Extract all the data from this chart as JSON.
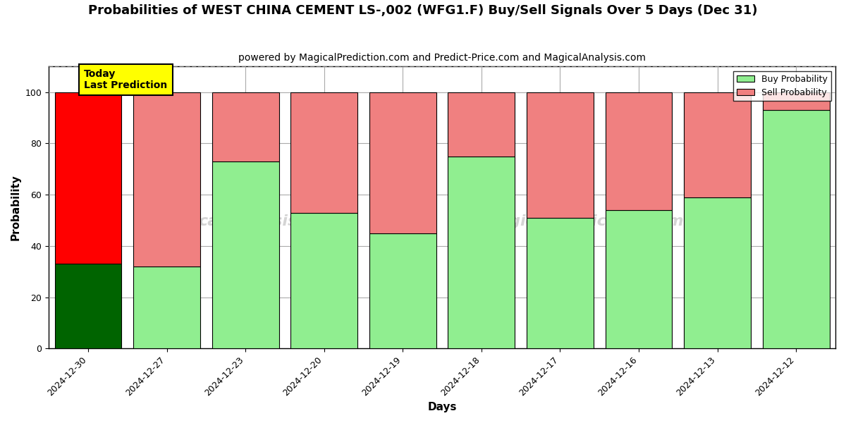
{
  "title": "Probabilities of WEST CHINA CEMENT LS-,002 (WFG1.F) Buy/Sell Signals Over 5 Days (Dec 31)",
  "subtitle": "powered by MagicalPrediction.com and Predict-Price.com and MagicalAnalysis.com",
  "xlabel": "Days",
  "ylabel": "Probability",
  "categories": [
    "2024-12-30",
    "2024-12-27",
    "2024-12-23",
    "2024-12-20",
    "2024-12-19",
    "2024-12-18",
    "2024-12-17",
    "2024-12-16",
    "2024-12-13",
    "2024-12-12"
  ],
  "buy_values": [
    33,
    32,
    73,
    53,
    45,
    75,
    51,
    54,
    59,
    93
  ],
  "sell_values": [
    67,
    68,
    27,
    47,
    55,
    25,
    49,
    46,
    41,
    7
  ],
  "buy_colors": [
    "#006400",
    "#90EE90",
    "#90EE90",
    "#90EE90",
    "#90EE90",
    "#90EE90",
    "#90EE90",
    "#90EE90",
    "#90EE90",
    "#90EE90"
  ],
  "sell_colors": [
    "#FF0000",
    "#F08080",
    "#F08080",
    "#F08080",
    "#F08080",
    "#F08080",
    "#F08080",
    "#F08080",
    "#F08080",
    "#F08080"
  ],
  "legend_buy_color": "#90EE90",
  "legend_sell_color": "#F08080",
  "today_box_color": "#FFFF00",
  "today_box_text": "Today\nLast Prediction",
  "today_box_text_color": "#000000",
  "watermark_text1": "calAnalysis.com",
  "watermark_text2": "MagicalPrediction.com",
  "ylim": [
    0,
    110
  ],
  "yticks": [
    0,
    20,
    40,
    60,
    80,
    100
  ],
  "dashed_line_y": 110,
  "background_color": "#ffffff",
  "plot_bg_color": "#ffffff",
  "grid_color": "#aaaaaa",
  "title_fontsize": 13,
  "subtitle_fontsize": 10,
  "figsize": [
    12,
    6
  ],
  "dpi": 100
}
